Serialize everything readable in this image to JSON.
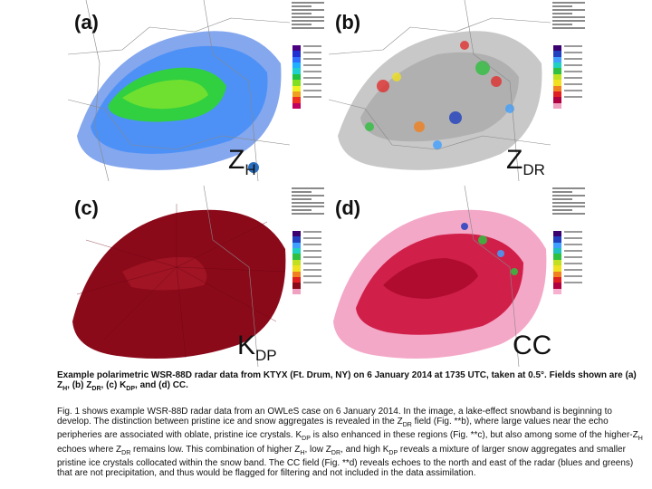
{
  "panels": [
    {
      "letter": "(a)",
      "field": "Z",
      "field_sub": "H",
      "scale": [
        "#4b0082",
        "#1f2fd0",
        "#2f6fff",
        "#20b0ff",
        "#20d0d0",
        "#20c040",
        "#80e020",
        "#f0f020",
        "#f0a020",
        "#f03020",
        "#c00060"
      ]
    },
    {
      "letter": "(b)",
      "field": "Z",
      "field_sub": "DR",
      "scale": [
        "#3a0070",
        "#2040c0",
        "#40a0ff",
        "#20d0c0",
        "#30c040",
        "#c0e020",
        "#f0e020",
        "#f08020",
        "#e02020",
        "#b00040",
        "#f0a0c0"
      ]
    },
    {
      "letter": "(c)",
      "field": "K",
      "field_sub": "DP",
      "scale": [
        "#3a0070",
        "#2040c0",
        "#40a0ff",
        "#20d0c0",
        "#30c040",
        "#c0e020",
        "#f0e020",
        "#f08020",
        "#e02020",
        "#8b0a1a",
        "#f0a0c0"
      ]
    },
    {
      "letter": "(d)",
      "field": "CC",
      "field_sub": "",
      "scale": [
        "#3a0070",
        "#2040c0",
        "#40a0ff",
        "#20c0c0",
        "#30c040",
        "#c0e020",
        "#f0e020",
        "#f08020",
        "#e02020",
        "#b00040",
        "#f8b0d0"
      ]
    }
  ],
  "caption": {
    "p1": "Example polarimetric WSR-88D radar data from KTYX (Ft. Drum, NY) on 6 January 2014 at 1735 UTC, taken at 0.5°. Fields shown are (a) Z",
    "s1": "H",
    "p2": ", (b) Z",
    "s2": "DR",
    "p3": ", (c) K",
    "s3": "DP",
    "p4": ", and (d) CC."
  },
  "body": {
    "t1": "Fig. 1 shows example WSR-88D radar data from an OWLeS case on 6 January 2014. In the image, a lake-effect snowband is beginning to develop. The distinction between pristine ice and snow aggregates is revealed in the Z",
    "s1": "DR",
    "t2": " field (Fig. **b), where large values near the echo peripheries are associated with oblate, pristine ice crystals. K",
    "s2": "DP",
    "t3": " is also enhanced in these regions (Fig. **c), but also among some of the higher-Z",
    "s3": "H",
    "t4": " echoes where Z",
    "s4": "DR",
    "t5": " remains low. This combination of higher Z",
    "s5": "H",
    "t6": ", low Z",
    "s6": "DR",
    "t7": ", and high K",
    "s7": "DP",
    "t8": " reveals a mixture of larger snow aggregates and smaller pristine ice crystals collocated within the snow band. The CC field (Fig. **d) reveals echoes to the north and east of the radar (blues and greens) that are not precipitation, and thus would be flagged for filtering and not included in the data assimilation."
  }
}
